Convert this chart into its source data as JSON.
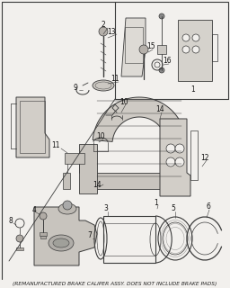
{
  "footnote": "(REMANUFACTURED BRAKE CALIPER ASSY. DOES NOT INCLUDE BRAKE PADS)",
  "bg_color": "#f2f0ed",
  "line_color": "#3a3a3a",
  "footnote_fontsize": 4.2,
  "label_fontsize": 5.5,
  "figsize": [
    2.56,
    3.2
  ],
  "dpi": 100
}
